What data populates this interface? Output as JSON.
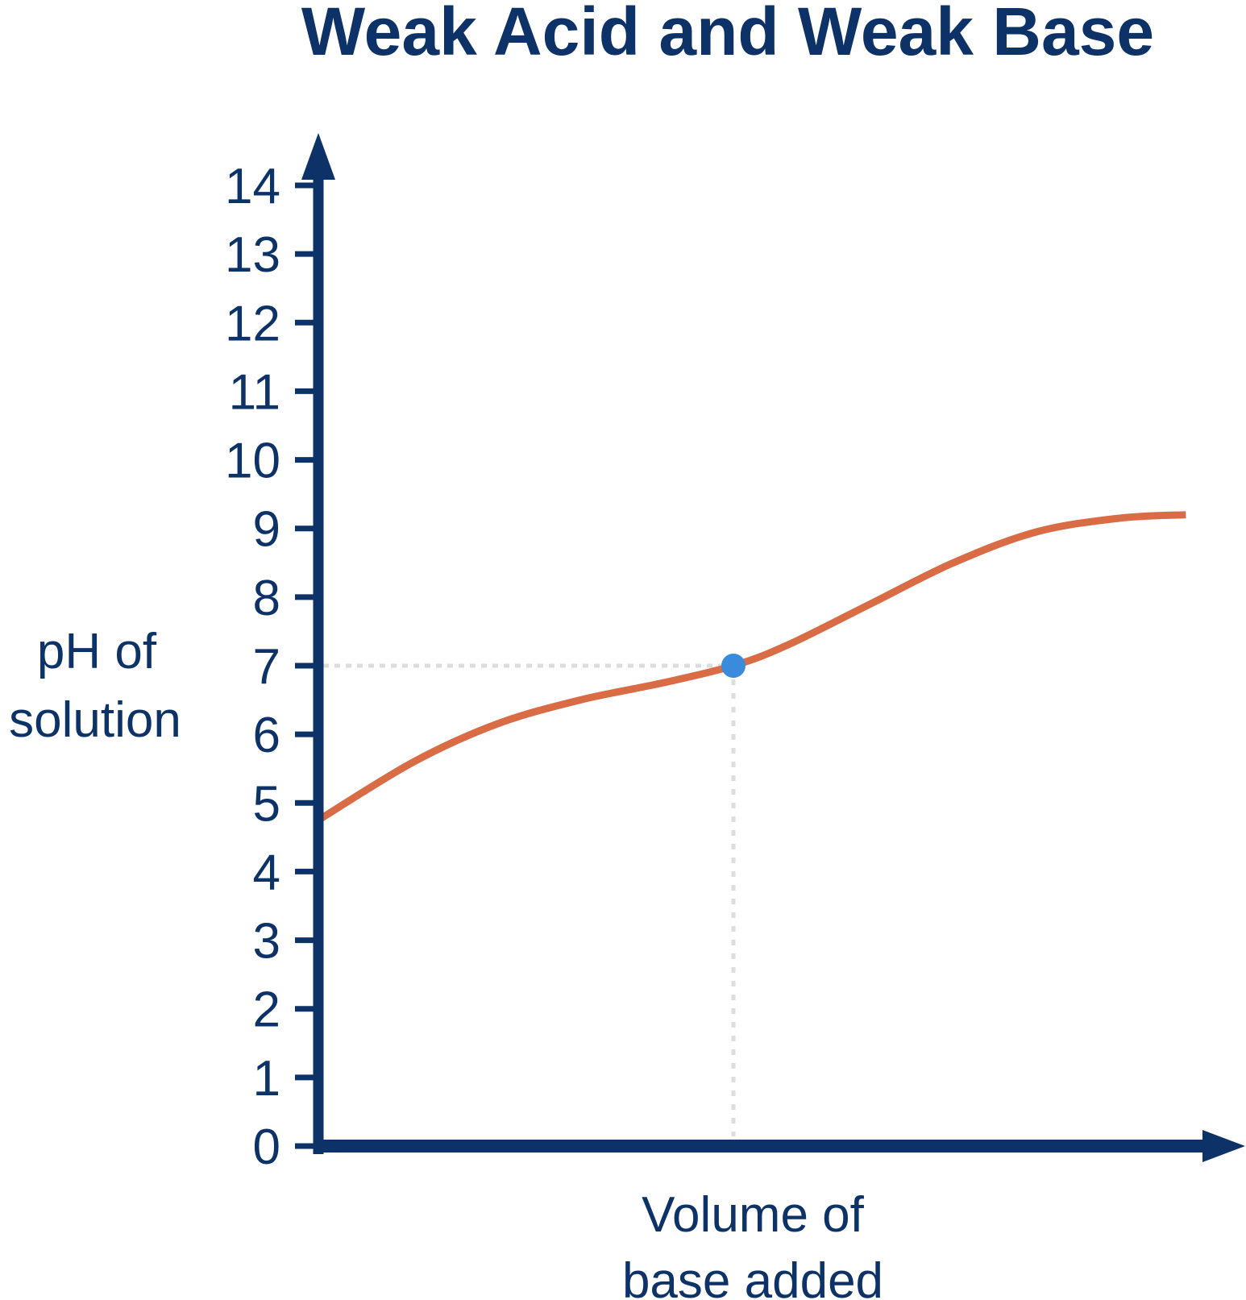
{
  "chart_data": {
    "type": "line",
    "title": "Weak Acid and Weak Base",
    "ylabel": [
      "pH of",
      "solution"
    ],
    "xlabel": [
      "Volume of",
      "base added"
    ],
    "ylim": [
      0,
      14
    ],
    "xlim": [
      0,
      2.23
    ],
    "yticks": [
      "0",
      "1",
      "2",
      "3",
      "4",
      "5",
      "6",
      "7",
      "8",
      "9",
      "10",
      "11",
      "12",
      "13",
      "14"
    ],
    "grid": false,
    "series": [
      {
        "x": [
          0,
          0.23,
          0.43,
          0.63,
          0.83,
          1.0,
          1.13,
          1.33,
          1.53,
          1.73,
          1.93,
          2.09
        ],
        "y": [
          4.75,
          5.6,
          6.15,
          6.5,
          6.75,
          7.0,
          7.3,
          7.9,
          8.5,
          8.95,
          9.15,
          9.2
        ]
      }
    ],
    "equivalence_point": {
      "x": 1.0,
      "y": 7
    },
    "colors": {
      "axis": "#0d3268",
      "curve": "#d96b45",
      "point": "#3b8bdc",
      "guide": "#dddddd"
    }
  }
}
